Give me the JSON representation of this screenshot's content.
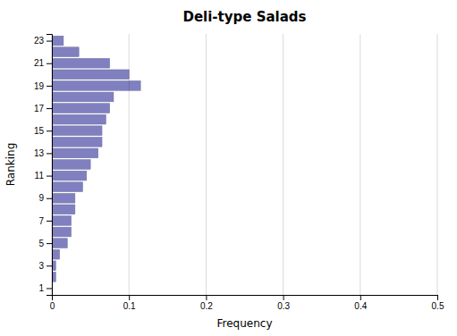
{
  "chart_data": {
    "type": "bar",
    "orientation": "horizontal",
    "title": "Deli-type Salads",
    "x_label": "Frequency",
    "y_label": "Ranking",
    "categories": [
      1,
      2,
      3,
      4,
      5,
      6,
      7,
      8,
      9,
      10,
      11,
      12,
      13,
      14,
      15,
      16,
      17,
      18,
      19,
      20,
      21,
      22,
      23
    ],
    "values": [
      0.0,
      0.005,
      0.005,
      0.01,
      0.02,
      0.025,
      0.025,
      0.03,
      0.03,
      0.04,
      0.045,
      0.05,
      0.06,
      0.065,
      0.065,
      0.07,
      0.075,
      0.08,
      0.115,
      0.1,
      0.075,
      0.035,
      0.015
    ],
    "color": "#8080c0",
    "xlim": [
      0,
      0.5
    ],
    "xticks": [
      0,
      0.1,
      0.2,
      0.3,
      0.4,
      0.5
    ],
    "ylim": [
      0.4,
      23.6
    ],
    "yticks": [
      1,
      3,
      5,
      7,
      9,
      11,
      13,
      15,
      17,
      19,
      21,
      23
    ],
    "grid": true
  }
}
